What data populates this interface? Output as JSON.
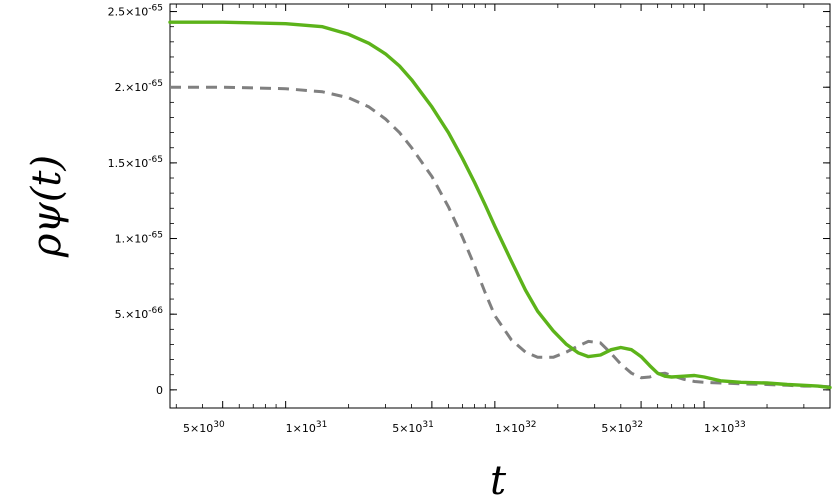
{
  "chart_data": {
    "type": "line",
    "xlabel": "t",
    "ylabel": "ρψ(t)",
    "x_scale": "log",
    "xlim": [
      2.8e+30,
      4e+33
    ],
    "ylim": [
      -1.2e-66,
      2.55e-65
    ],
    "x_ticks": [
      {
        "value": 5e+30,
        "mantissa": "5",
        "exponent": "30"
      },
      {
        "value": 1e+31,
        "mantissa": "1",
        "exponent": "31"
      },
      {
        "value": 5e+31,
        "mantissa": "5",
        "exponent": "31"
      },
      {
        "value": 1e+32,
        "mantissa": "1",
        "exponent": "32"
      },
      {
        "value": 5e+32,
        "mantissa": "5",
        "exponent": "32"
      },
      {
        "value": 1e+33,
        "mantissa": "1",
        "exponent": "33"
      }
    ],
    "y_ticks": [
      {
        "value": 0,
        "mantissa": "0",
        "exponent": ""
      },
      {
        "value": 5e-66,
        "mantissa": "5.",
        "exponent": "-66"
      },
      {
        "value": 1e-65,
        "mantissa": "1.",
        "exponent": "-65"
      },
      {
        "value": 1.5e-65,
        "mantissa": "1.5",
        "exponent": "-65"
      },
      {
        "value": 2e-65,
        "mantissa": "2.",
        "exponent": "-65"
      },
      {
        "value": 2.5e-65,
        "mantissa": "2.5",
        "exponent": "-65"
      }
    ],
    "times_symbol": "×",
    "base": "10",
    "series": [
      {
        "color": "#5cb31a",
        "dash": "solid",
        "x": [
          2.8e+30,
          5e+30,
          1e+31,
          1.5e+31,
          2e+31,
          2.5e+31,
          3e+31,
          3.5e+31,
          4e+31,
          5e+31,
          6e+31,
          7e+31,
          8e+31,
          9e+31,
          1e+32,
          1.2e+32,
          1.4e+32,
          1.6e+32,
          1.9e+32,
          2.2e+32,
          2.5e+32,
          2.8e+32,
          3.2e+32,
          3.6e+32,
          4e+32,
          4.5e+32,
          5e+32,
          5.5e+32,
          6e+32,
          6.5e+32,
          7e+32,
          8e+32,
          9e+32,
          1e+33,
          1.2e+33,
          1.5e+33,
          2e+33,
          2.5e+33,
          3e+33,
          3.5e+33,
          4e+33
        ],
        "y": [
          2.43e-65,
          2.43e-65,
          2.42e-65,
          2.4e-65,
          2.35e-65,
          2.29e-65,
          2.22e-65,
          2.14e-65,
          2.05e-65,
          1.87e-65,
          1.7e-65,
          1.53e-65,
          1.37e-65,
          1.22e-65,
          1.08e-65,
          8.5e-66,
          6.6e-66,
          5.2e-66,
          3.9e-66,
          3e-66,
          2.45e-66,
          2.2e-66,
          2.3e-66,
          2.65e-66,
          2.8e-66,
          2.65e-66,
          2.2e-66,
          1.6e-66,
          1.1e-66,
          9e-67,
          8.5e-67,
          9e-67,
          9.5e-67,
          8.5e-67,
          6e-67,
          5e-67,
          4.5e-67,
          3.5e-67,
          3e-67,
          2.5e-67,
          1.5e-67
        ]
      },
      {
        "color": "#808080",
        "dash": "dashed",
        "x": [
          2.8e+30,
          5e+30,
          1e+31,
          1.5e+31,
          2e+31,
          2.5e+31,
          3e+31,
          3.5e+31,
          4e+31,
          5e+31,
          6e+31,
          7e+31,
          8e+31,
          9e+31,
          1e+32,
          1.2e+32,
          1.4e+32,
          1.6e+32,
          1.9e+32,
          2.2e+32,
          2.5e+32,
          2.8e+32,
          3.2e+32,
          3.6e+32,
          4e+32,
          4.5e+32,
          5e+32,
          5.5e+32,
          6e+32,
          6.5e+32,
          7e+32,
          8e+32,
          9e+32,
          1e+33,
          1.2e+33,
          1.5e+33,
          2e+33,
          2.5e+33,
          3e+33,
          3.5e+33,
          4e+33
        ],
        "y": [
          2e-65,
          2e-65,
          1.99e-65,
          1.97e-65,
          1.93e-65,
          1.87e-65,
          1.79e-65,
          1.7e-65,
          1.6e-65,
          1.41e-65,
          1.21e-65,
          1.01e-65,
          8.2e-66,
          6.4e-66,
          4.9e-66,
          3.3e-66,
          2.5e-66,
          2.15e-66,
          2.15e-66,
          2.5e-66,
          2.9e-66,
          3.2e-66,
          3.1e-66,
          2.4e-66,
          1.7e-66,
          1.1e-66,
          8e-67,
          8.5e-67,
          1.05e-66,
          1.1e-66,
          9.5e-67,
          7e-67,
          5.5e-67,
          5e-67,
          4.5e-67,
          4e-67,
          3.5e-67,
          3e-67,
          2.5e-67,
          2.5e-67,
          2e-67
        ]
      }
    ]
  }
}
